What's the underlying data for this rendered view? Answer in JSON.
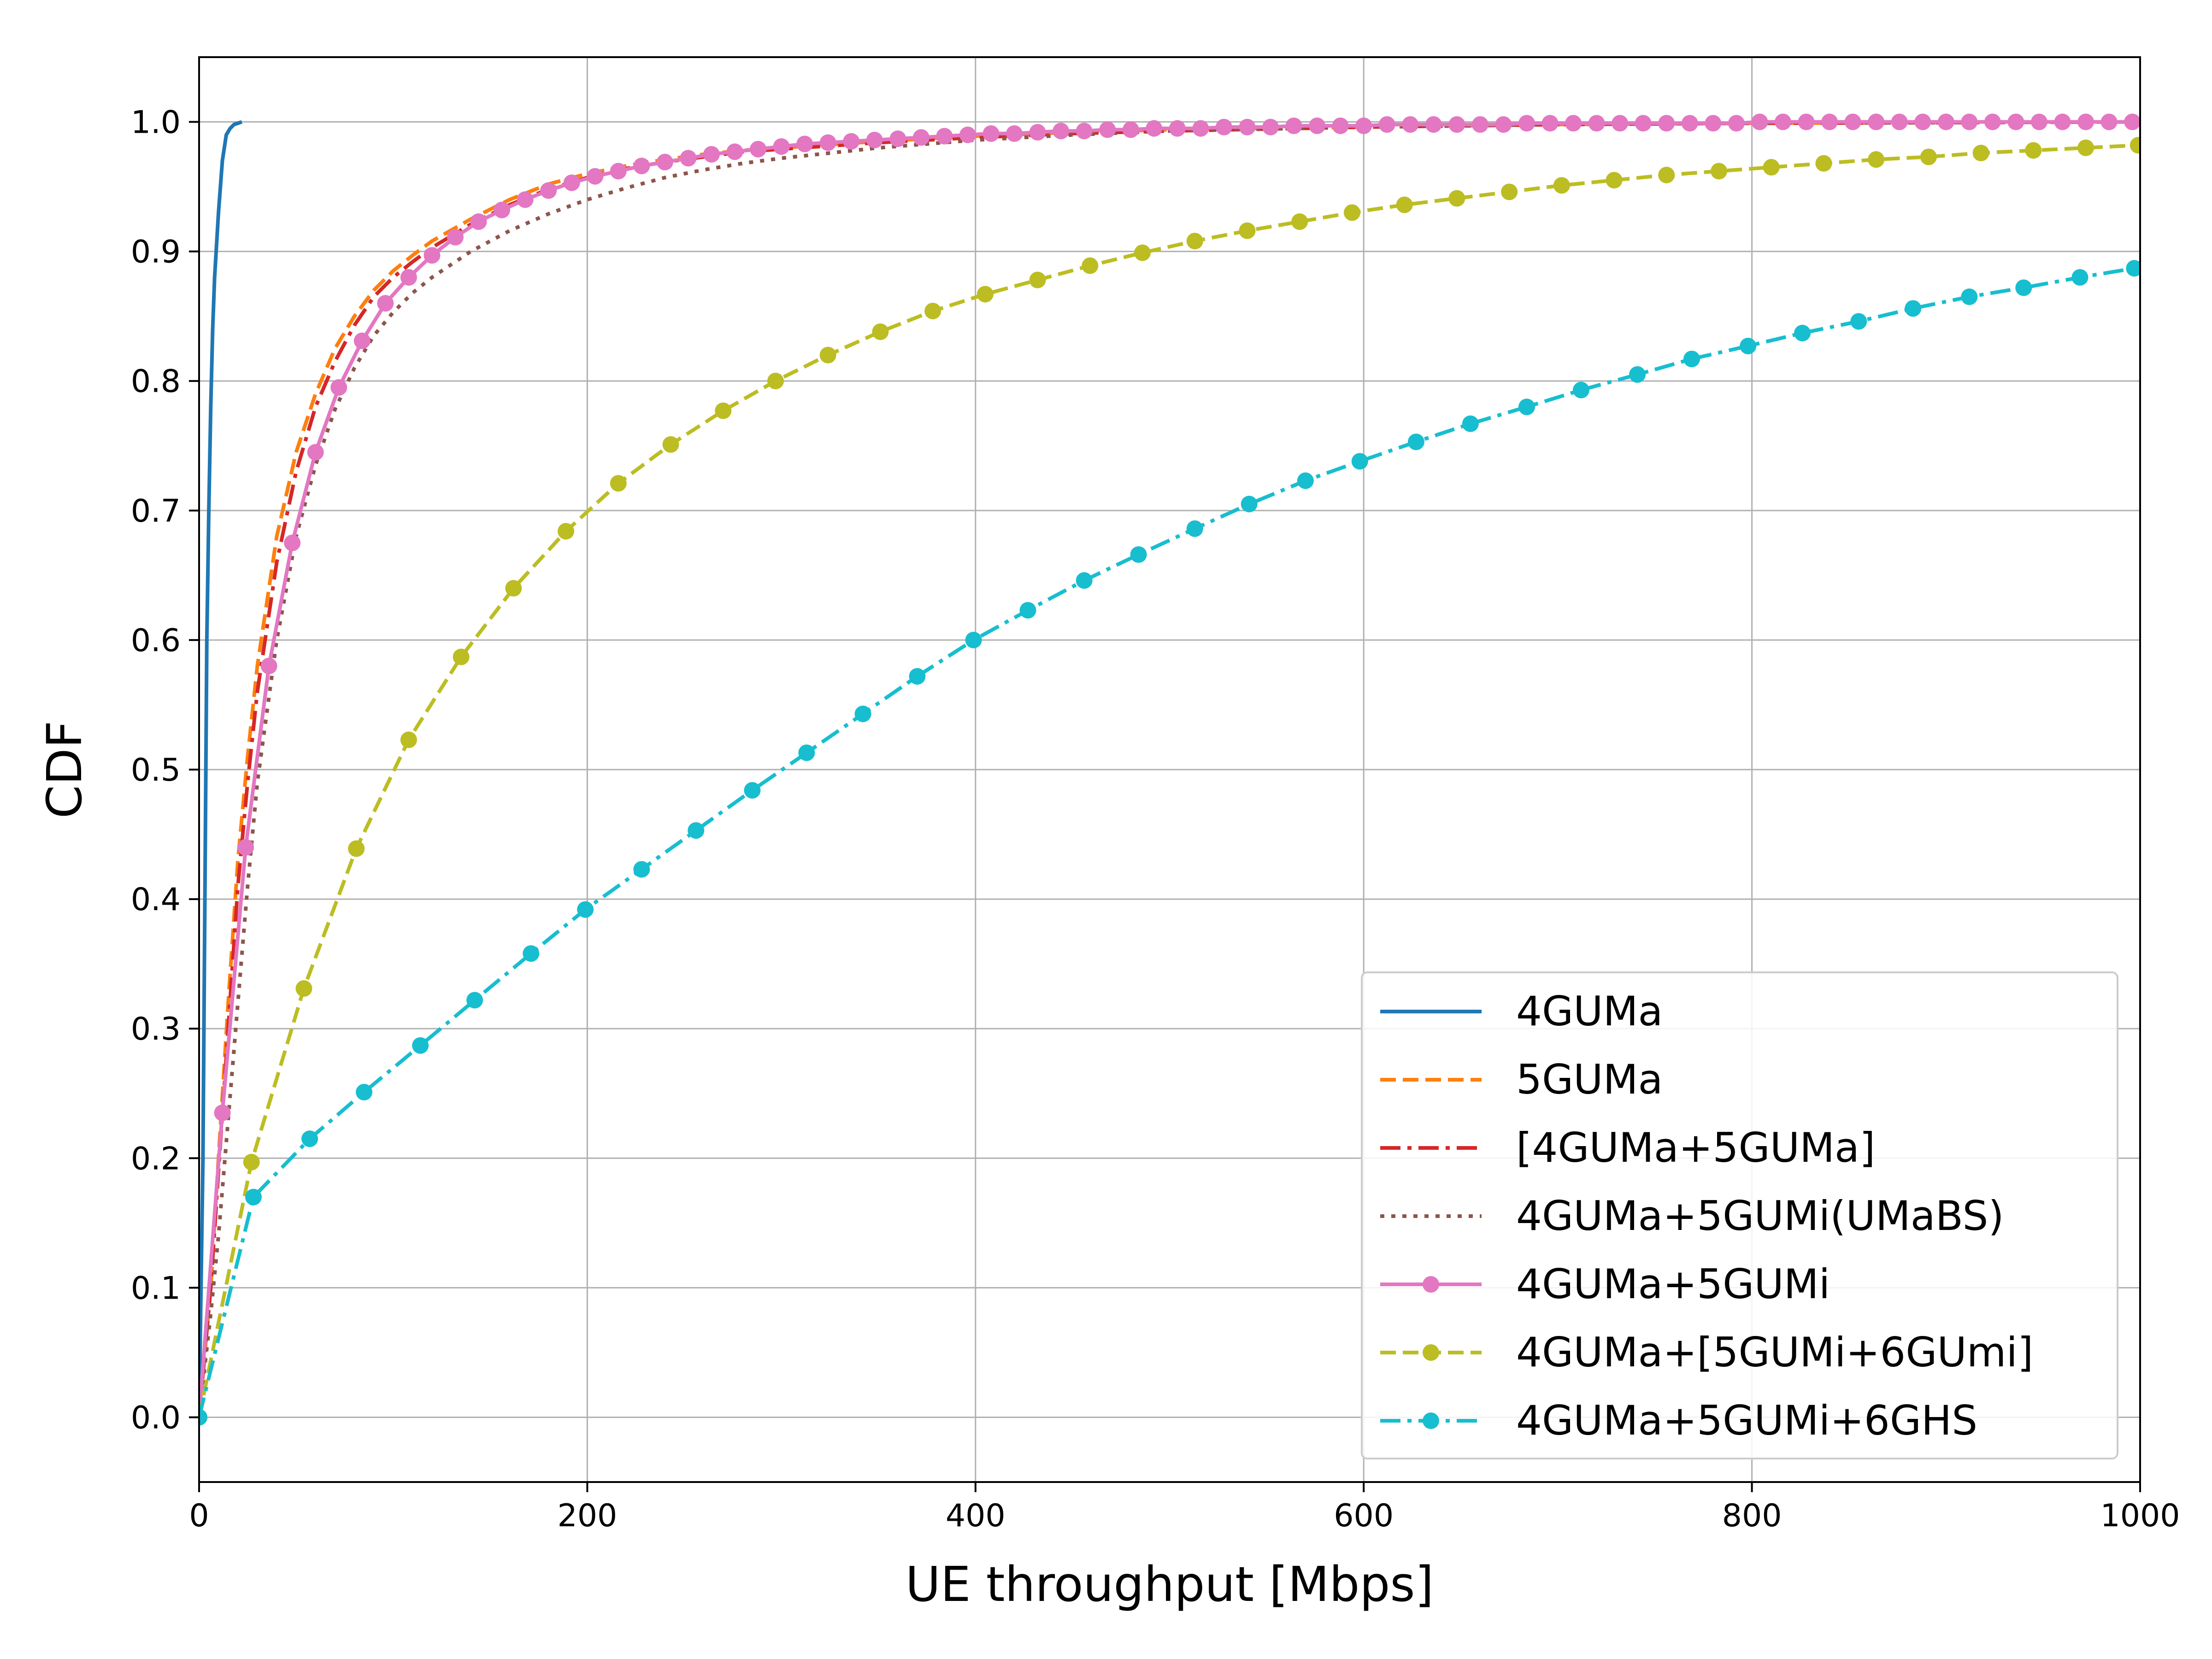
{
  "chart_data": {
    "type": "line",
    "title": "",
    "xlabel": "UE throughput [Mbps]",
    "ylabel": "CDF",
    "xlim": [
      0,
      1000
    ],
    "ylim": [
      -0.05,
      1.05
    ],
    "xticks": [
      0,
      200,
      400,
      600,
      800,
      1000
    ],
    "xtick_labels": [
      "0",
      "200",
      "400",
      "600",
      "800",
      "1000"
    ],
    "yticks": [
      0.0,
      0.1,
      0.2,
      0.3,
      0.4,
      0.5,
      0.6,
      0.7,
      0.8,
      0.9,
      1.0
    ],
    "ytick_labels": [
      "0.0",
      "0.1",
      "0.2",
      "0.3",
      "0.4",
      "0.5",
      "0.6",
      "0.7",
      "0.8",
      "0.9",
      "1.0"
    ],
    "grid": true,
    "legend_position": "bottom-right",
    "series": [
      {
        "name": "4GUMa",
        "color": "#1f77b4",
        "linestyle": "solid",
        "marker": "none",
        "x": [
          0,
          2,
          3,
          4,
          5,
          6,
          7,
          8,
          10,
          12,
          14,
          16,
          18,
          20,
          22
        ],
        "y": [
          0.0,
          0.2,
          0.4,
          0.6,
          0.7,
          0.78,
          0.84,
          0.88,
          0.93,
          0.97,
          0.99,
          0.995,
          0.998,
          0.999,
          1.0
        ]
      },
      {
        "name": "5GUMa",
        "color": "#ff7f0e",
        "linestyle": "dashed",
        "marker": "none",
        "x": [
          0,
          3,
          6,
          10,
          15,
          20,
          25,
          30,
          40,
          50,
          60,
          70,
          80,
          90,
          100,
          110,
          120,
          140,
          160,
          180,
          200,
          220,
          240,
          260,
          280,
          300,
          350,
          400,
          450,
          500,
          600,
          700,
          800,
          900,
          1000
        ],
        "y": [
          0.0,
          0.05,
          0.1,
          0.2,
          0.32,
          0.43,
          0.51,
          0.58,
          0.68,
          0.745,
          0.79,
          0.825,
          0.85,
          0.87,
          0.885,
          0.897,
          0.908,
          0.925,
          0.94,
          0.952,
          0.96,
          0.966,
          0.971,
          0.975,
          0.978,
          0.98,
          0.985,
          0.989,
          0.992,
          0.994,
          0.996,
          0.998,
          0.999,
          0.9995,
          1.0
        ]
      },
      {
        "name": "[4GUMa+5GUMa]",
        "color": "#d62728",
        "linestyle": "dashdot",
        "marker": "none",
        "x": [
          0,
          3,
          6,
          10,
          15,
          20,
          25,
          30,
          40,
          50,
          60,
          70,
          80,
          90,
          100,
          110,
          120,
          140,
          160,
          180,
          200,
          220,
          240,
          260,
          280,
          300,
          350,
          400,
          450,
          500,
          600,
          700,
          800,
          900,
          1000
        ],
        "y": [
          0.0,
          0.05,
          0.1,
          0.19,
          0.3,
          0.41,
          0.49,
          0.56,
          0.66,
          0.73,
          0.78,
          0.815,
          0.843,
          0.865,
          0.88,
          0.892,
          0.903,
          0.921,
          0.936,
          0.948,
          0.957,
          0.964,
          0.969,
          0.973,
          0.977,
          0.979,
          0.984,
          0.988,
          0.991,
          0.993,
          0.996,
          0.998,
          0.999,
          0.9995,
          1.0
        ]
      },
      {
        "name": "4GUMa+5GUMi(UMaBS)",
        "color": "#8c564b",
        "linestyle": "dotted",
        "marker": "none",
        "x": [
          0,
          3,
          6,
          10,
          15,
          20,
          25,
          30,
          40,
          50,
          60,
          70,
          80,
          90,
          100,
          110,
          120,
          140,
          160,
          180,
          200,
          220,
          240,
          260,
          280,
          300,
          350,
          400,
          450,
          500,
          600,
          700,
          800,
          900,
          1000
        ],
        "y": [
          0.0,
          0.04,
          0.08,
          0.14,
          0.23,
          0.32,
          0.41,
          0.49,
          0.6,
          0.68,
          0.735,
          0.778,
          0.81,
          0.835,
          0.853,
          0.868,
          0.88,
          0.9,
          0.916,
          0.929,
          0.94,
          0.949,
          0.957,
          0.963,
          0.968,
          0.972,
          0.98,
          0.986,
          0.99,
          0.993,
          0.996,
          0.998,
          0.999,
          0.9995,
          1.0
        ]
      },
      {
        "name": "4GUMa+5GUMi",
        "color": "#e377c2",
        "linestyle": "solid",
        "marker": "circle",
        "x": [
          0,
          12,
          24,
          36,
          48,
          60,
          72,
          84,
          96,
          108,
          120,
          132,
          144,
          156,
          168,
          180,
          192,
          204,
          216,
          228,
          240,
          252,
          264,
          276,
          288,
          300,
          312,
          324,
          336,
          348,
          360,
          372,
          384,
          396,
          408,
          420,
          432,
          444,
          456,
          468,
          480,
          492,
          504,
          516,
          528,
          540,
          552,
          564,
          576,
          588,
          600,
          612,
          624,
          636,
          648,
          660,
          672,
          684,
          696,
          708,
          720,
          732,
          744,
          756,
          768,
          780,
          792,
          804,
          816,
          828,
          840,
          852,
          864,
          876,
          888,
          900,
          912,
          924,
          936,
          948,
          960,
          972,
          984,
          996
        ],
        "y": [
          0.0,
          0.235,
          0.44,
          0.58,
          0.675,
          0.745,
          0.795,
          0.831,
          0.86,
          0.88,
          0.897,
          0.911,
          0.923,
          0.932,
          0.94,
          0.947,
          0.953,
          0.958,
          0.962,
          0.966,
          0.969,
          0.972,
          0.975,
          0.977,
          0.979,
          0.981,
          0.983,
          0.984,
          0.985,
          0.986,
          0.987,
          0.988,
          0.989,
          0.99,
          0.991,
          0.991,
          0.992,
          0.993,
          0.993,
          0.994,
          0.994,
          0.995,
          0.995,
          0.995,
          0.996,
          0.996,
          0.996,
          0.997,
          0.997,
          0.997,
          0.997,
          0.998,
          0.998,
          0.998,
          0.998,
          0.998,
          0.998,
          0.999,
          0.999,
          0.999,
          0.999,
          0.999,
          0.999,
          0.999,
          0.999,
          0.999,
          0.999,
          1.0,
          1.0,
          1.0,
          1.0,
          1.0,
          1.0,
          1.0,
          1.0,
          1.0,
          1.0,
          1.0,
          1.0,
          1.0,
          1.0,
          1.0,
          1.0,
          1.0
        ]
      },
      {
        "name": "4GUMa+[5GUMi+6GUmi]",
        "color": "#bcbd22",
        "linestyle": "dashed",
        "marker": "circle",
        "x": [
          0,
          27,
          54,
          81,
          108,
          135,
          162,
          189,
          216,
          243,
          270,
          297,
          324,
          351,
          378,
          405,
          432,
          459,
          486,
          513,
          540,
          567,
          594,
          621,
          648,
          675,
          702,
          729,
          756,
          783,
          810,
          837,
          864,
          891,
          918,
          945,
          972,
          999
        ],
        "y": [
          0.0,
          0.197,
          0.331,
          0.439,
          0.523,
          0.587,
          0.64,
          0.684,
          0.721,
          0.751,
          0.777,
          0.8,
          0.82,
          0.838,
          0.854,
          0.867,
          0.878,
          0.889,
          0.899,
          0.908,
          0.916,
          0.923,
          0.93,
          0.936,
          0.941,
          0.946,
          0.951,
          0.955,
          0.959,
          0.962,
          0.965,
          0.968,
          0.971,
          0.973,
          0.976,
          0.978,
          0.98,
          0.982
        ]
      },
      {
        "name": "4GUMa+5GUMi+6GHS",
        "color": "#17becf",
        "linestyle": "dashdot",
        "marker": "circle",
        "x": [
          0,
          28,
          57,
          85,
          114,
          142,
          171,
          199,
          228,
          256,
          285,
          313,
          342,
          370,
          399,
          427,
          456,
          484,
          513,
          541,
          570,
          598,
          627,
          655,
          684,
          712,
          741,
          769,
          798,
          826,
          855,
          883,
          912,
          940,
          969,
          997
        ],
        "y": [
          0.0,
          0.17,
          0.215,
          0.251,
          0.287,
          0.322,
          0.358,
          0.392,
          0.423,
          0.453,
          0.484,
          0.513,
          0.543,
          0.572,
          0.6,
          0.623,
          0.646,
          0.666,
          0.686,
          0.705,
          0.723,
          0.738,
          0.753,
          0.767,
          0.78,
          0.793,
          0.805,
          0.817,
          0.827,
          0.837,
          0.846,
          0.856,
          0.865,
          0.872,
          0.88,
          0.887
        ]
      }
    ]
  }
}
